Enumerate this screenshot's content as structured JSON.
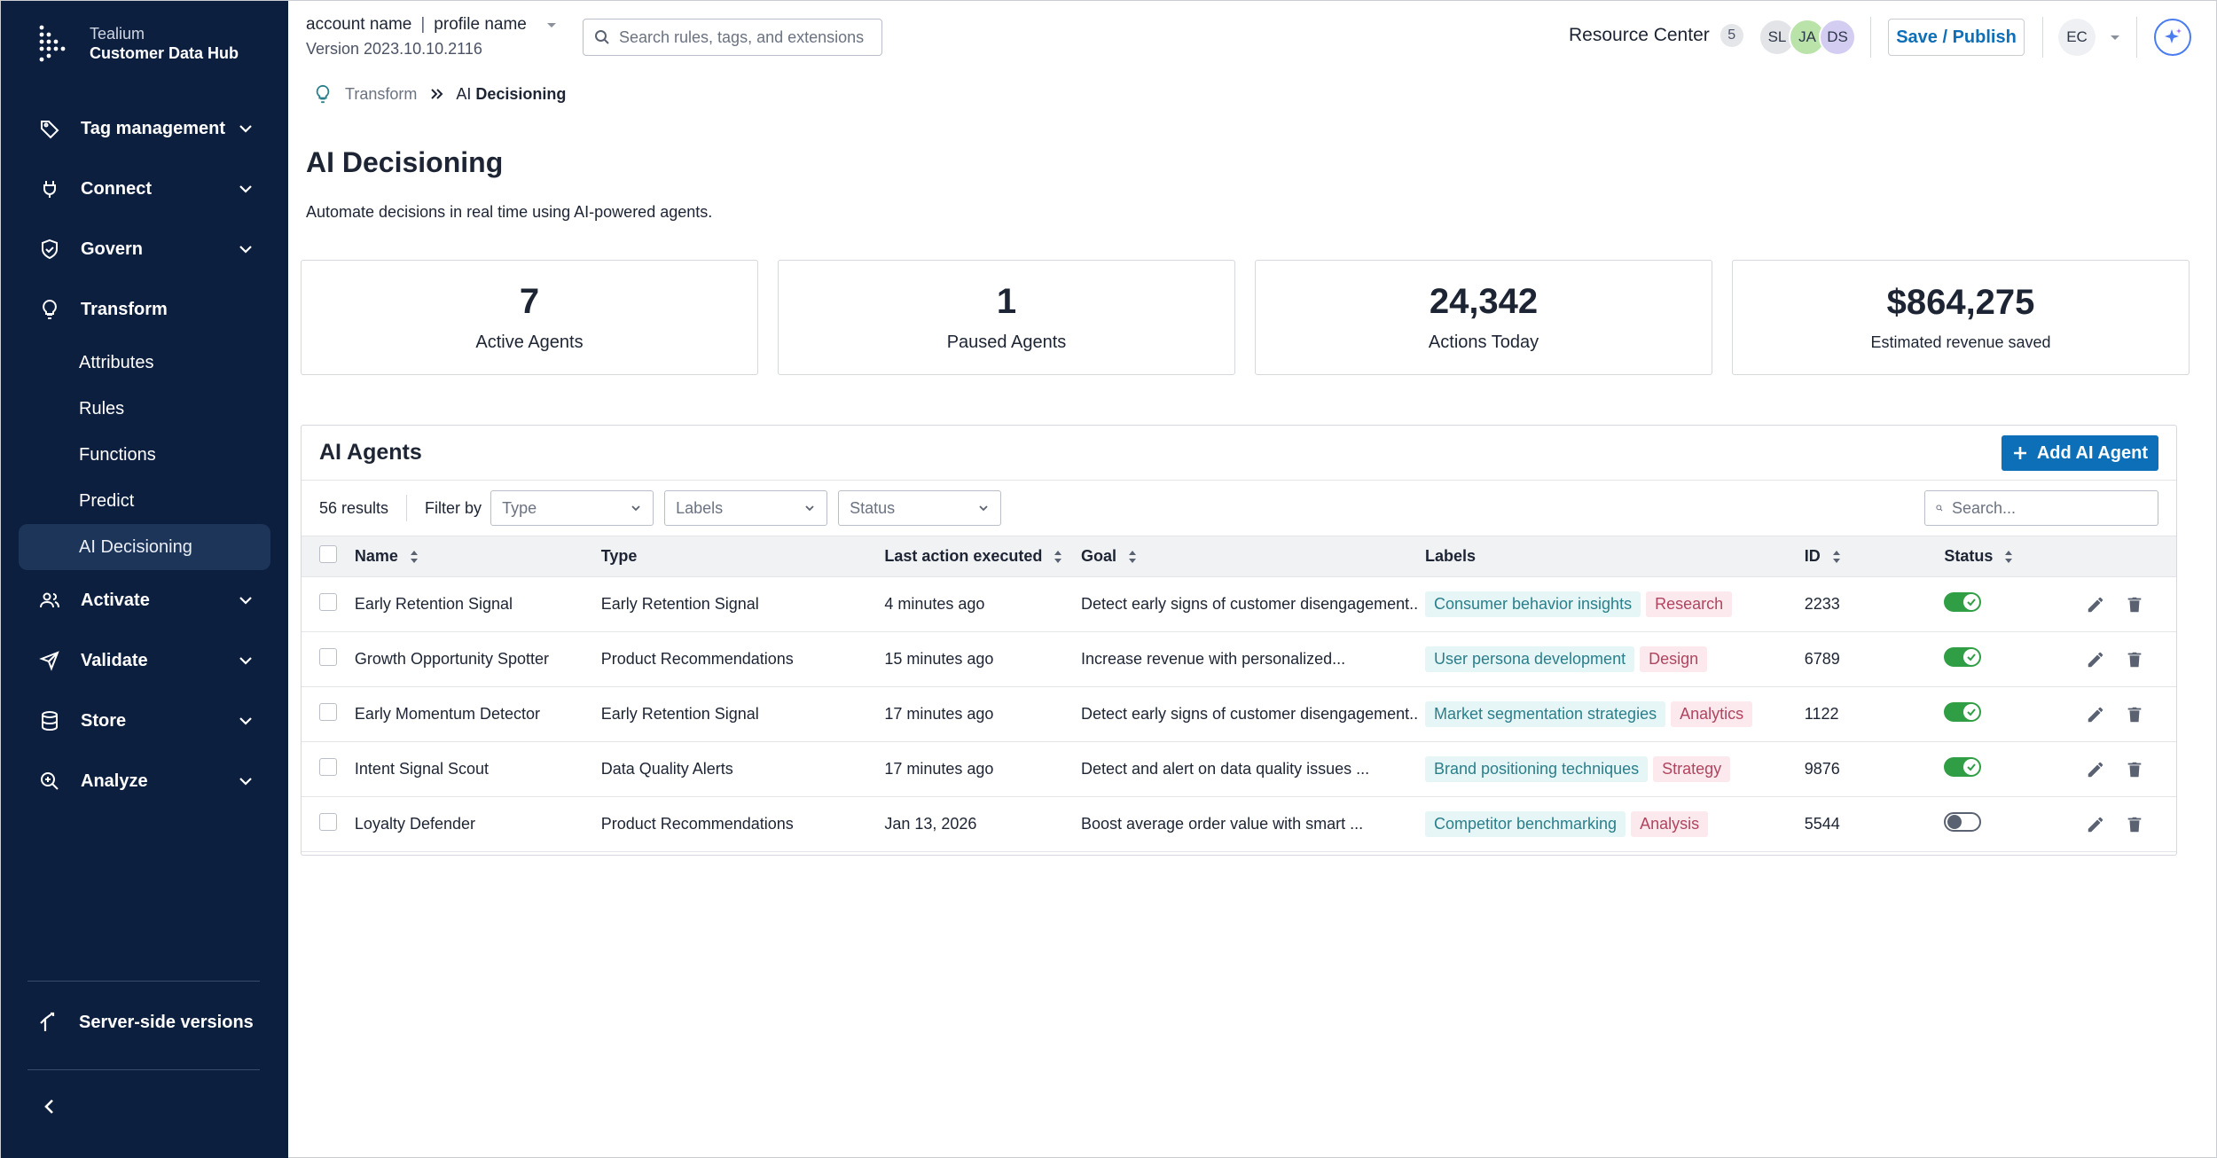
{
  "brand": {
    "sub": "Tealium",
    "main": "Customer Data Hub"
  },
  "sidebar": {
    "items": [
      {
        "label": "Tag management",
        "icon": "tag-icon"
      },
      {
        "label": "Connect",
        "icon": "plug-icon"
      },
      {
        "label": "Govern",
        "icon": "shield-icon"
      },
      {
        "label": "Transform",
        "icon": "lightbulb-icon"
      },
      {
        "label": "Activate",
        "icon": "users-icon"
      },
      {
        "label": "Validate",
        "icon": "send-icon"
      },
      {
        "label": "Store",
        "icon": "database-icon"
      },
      {
        "label": "Analyze",
        "icon": "zoom-icon"
      }
    ],
    "transform_sub": [
      "Attributes",
      "Rules",
      "Functions",
      "Predict",
      "AI Decisioning"
    ],
    "server_side": "Server-side versions"
  },
  "header": {
    "account": "account name",
    "profile": "profile name",
    "version": "Version 2023.10.10.2116",
    "search_placeholder": "Search rules, tags, and extensions",
    "resource_center": "Resource Center",
    "resource_count": "5",
    "avatars": [
      {
        "initials": "SL",
        "color": "#e2e4e8"
      },
      {
        "initials": "JA",
        "color": "#b9e3a9"
      },
      {
        "initials": "DS",
        "color": "#d3cdf2"
      }
    ],
    "save_label": "Save / Publish",
    "user_initials": "EC"
  },
  "breadcrumb": {
    "parent": "Transform",
    "current_prefix": "AI",
    "current_bold": "Decisioning"
  },
  "page": {
    "title": "AI Decisioning",
    "description": "Automate decisions in real time using AI-powered agents."
  },
  "stats": [
    {
      "value": "7",
      "label": "Active Agents"
    },
    {
      "value": "1",
      "label": "Paused Agents"
    },
    {
      "value": "24,342",
      "label": "Actions Today"
    },
    {
      "value": "$864,275",
      "label": "Estimated revenue saved"
    }
  ],
  "agents": {
    "title": "AI Agents",
    "add_label": "Add AI Agent",
    "results": "56 results",
    "filter_by": "Filter by",
    "filters": [
      "Type",
      "Labels",
      "Status"
    ],
    "search_placeholder": "Search...",
    "columns": [
      "Name",
      "Type",
      "Last action executed",
      "Goal",
      "Labels",
      "ID",
      "Status"
    ],
    "rows": [
      {
        "name": "Early Retention Signal",
        "type": "Early Retention Signal",
        "last": "4 minutes ago",
        "goal": "Detect early signs of customer disengagement..",
        "label1": "Consumer behavior insights",
        "label2": "Research",
        "id": "2233",
        "status": "on"
      },
      {
        "name": "Growth Opportunity Spotter",
        "type": "Product  Recommendations",
        "last": "15 minutes ago",
        "goal": "Increase revenue with personalized...",
        "label1": "User persona development",
        "label2": "Design",
        "id": "6789",
        "status": "on"
      },
      {
        "name": "Early Momentum Detector",
        "type": "Early Retention Signal",
        "last": "17 minutes ago",
        "goal": "Detect early signs of customer disengagement..",
        "label1": "Market segmentation strategies",
        "label2": "Analytics",
        "id": "1122",
        "status": "on"
      },
      {
        "name": "Intent Signal Scout",
        "type": "Data Quality Alerts",
        "last": "17 minutes ago",
        "goal": "Detect and alert on data quality issues ...",
        "label1": "Brand positioning techniques",
        "label2": "Strategy",
        "id": "9876",
        "status": "on"
      },
      {
        "name": "Loyalty Defender",
        "type": "Product  Recommendations",
        "last": "Jan 13, 2026",
        "goal": "Boost average order value with smart ...",
        "label1": "Competitor benchmarking",
        "label2": "Analysis",
        "id": "5544",
        "status": "off"
      }
    ]
  }
}
